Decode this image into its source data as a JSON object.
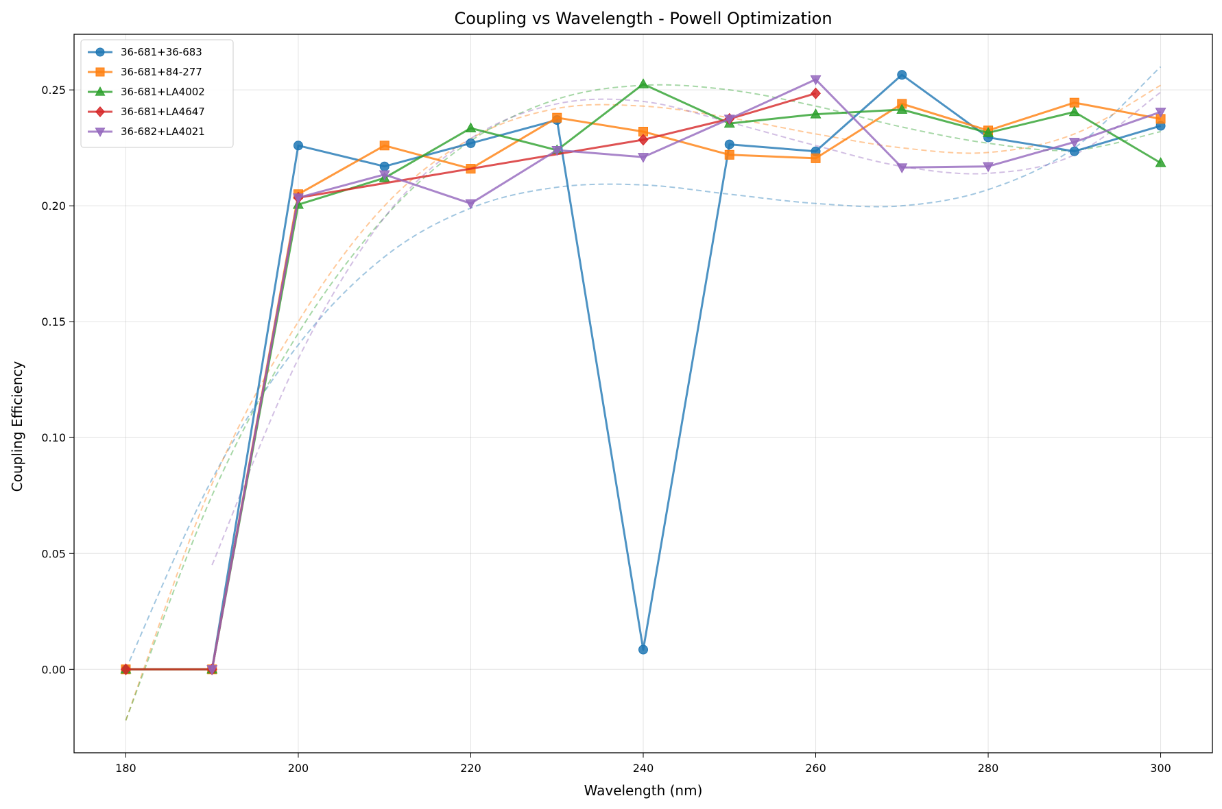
{
  "chart_data": {
    "type": "line",
    "title": "Coupling vs Wavelength - Powell Optimization",
    "xlabel": "Wavelength (nm)",
    "ylabel": "Coupling Efficiency",
    "xlim": [
      174,
      306
    ],
    "ylim": [
      -0.036,
      0.274
    ],
    "xticks": [
      180,
      200,
      220,
      240,
      260,
      280,
      300
    ],
    "xtick_labels": [
      "180",
      "200",
      "220",
      "240",
      "260",
      "280",
      "300"
    ],
    "yticks": [
      0.0,
      0.05,
      0.1,
      0.15,
      0.2,
      0.25
    ],
    "ytick_labels": [
      "0.00",
      "0.05",
      "0.10",
      "0.15",
      "0.20",
      "0.25"
    ],
    "grid": true,
    "legend_position": "top-left",
    "series": [
      {
        "name": "36-681+36-683",
        "color": "#1f77b4",
        "marker": "circle",
        "x": [
          180,
          190,
          200,
          210,
          220,
          230,
          240,
          250,
          260,
          270,
          280,
          290,
          300
        ],
        "values": [
          0.0,
          0.0,
          0.226,
          0.217,
          0.227,
          0.237,
          0.0085,
          0.2265,
          0.2235,
          0.2565,
          0.2295,
          0.2235,
          0.2345
        ],
        "fit": [
          [
            180,
            0.0
          ],
          [
            190,
            0.082
          ],
          [
            200,
            0.14
          ],
          [
            210,
            0.178
          ],
          [
            220,
            0.199
          ],
          [
            230,
            0.208
          ],
          [
            240,
            0.209
          ],
          [
            250,
            0.205
          ],
          [
            260,
            0.201
          ],
          [
            270,
            0.2
          ],
          [
            280,
            0.207
          ],
          [
            290,
            0.225
          ],
          [
            300,
            0.26
          ]
        ]
      },
      {
        "name": "36-681+84-277",
        "color": "#ff7f0e",
        "marker": "square",
        "x": [
          180,
          190,
          200,
          210,
          220,
          230,
          240,
          250,
          260,
          270,
          280,
          290,
          300
        ],
        "values": [
          0.0,
          0.0,
          0.205,
          0.226,
          0.216,
          0.238,
          0.232,
          0.222,
          0.2205,
          0.244,
          0.2325,
          0.2445,
          0.2375
        ],
        "fit": [
          [
            180,
            -0.022
          ],
          [
            190,
            0.08
          ],
          [
            200,
            0.15
          ],
          [
            210,
            0.2
          ],
          [
            220,
            0.229
          ],
          [
            230,
            0.242
          ],
          [
            240,
            0.243
          ],
          [
            250,
            0.238
          ],
          [
            260,
            0.231
          ],
          [
            270,
            0.225
          ],
          [
            280,
            0.223
          ],
          [
            290,
            0.231
          ],
          [
            300,
            0.252
          ]
        ]
      },
      {
        "name": "36-681+LA4002",
        "color": "#2ca02c",
        "marker": "triangle-up",
        "x": [
          180,
          190,
          200,
          210,
          220,
          230,
          240,
          250,
          260,
          270,
          280,
          290,
          300
        ],
        "values": [
          0.0,
          0.0,
          0.2005,
          0.212,
          0.2335,
          0.224,
          0.2525,
          0.2355,
          0.2395,
          0.2415,
          0.2315,
          0.2405,
          0.2185
        ],
        "fit": [
          [
            180,
            -0.022
          ],
          [
            190,
            0.075
          ],
          [
            200,
            0.145
          ],
          [
            210,
            0.195
          ],
          [
            220,
            0.228
          ],
          [
            230,
            0.246
          ],
          [
            240,
            0.252
          ],
          [
            250,
            0.25
          ],
          [
            260,
            0.243
          ],
          [
            270,
            0.234
          ],
          [
            280,
            0.227
          ],
          [
            290,
            0.224
          ],
          [
            300,
            0.232
          ]
        ]
      },
      {
        "name": "36-681+LA4647",
        "color": "#d62728",
        "marker": "diamond",
        "x": [
          180,
          190,
          200,
          240,
          250,
          260
        ],
        "values": [
          0.0,
          0.0,
          0.2035,
          0.2285,
          0.2375,
          0.2485
        ],
        "fit": []
      },
      {
        "name": "36-682+LA4021",
        "color": "#9467bd",
        "marker": "triangle-down",
        "x": [
          190,
          200,
          210,
          220,
          230,
          240,
          250,
          260,
          270,
          280,
          290,
          300
        ],
        "values": [
          0.0,
          0.2035,
          0.2135,
          0.201,
          0.224,
          0.221,
          0.2375,
          0.2545,
          0.2165,
          0.217,
          0.2275,
          0.2405
        ],
        "fit": [
          [
            190,
            0.045
          ],
          [
            200,
            0.134
          ],
          [
            210,
            0.195
          ],
          [
            220,
            0.229
          ],
          [
            230,
            0.244
          ],
          [
            240,
            0.245
          ],
          [
            250,
            0.236
          ],
          [
            260,
            0.226
          ],
          [
            270,
            0.217
          ],
          [
            280,
            0.214
          ],
          [
            290,
            0.222
          ],
          [
            300,
            0.249
          ]
        ]
      }
    ]
  }
}
